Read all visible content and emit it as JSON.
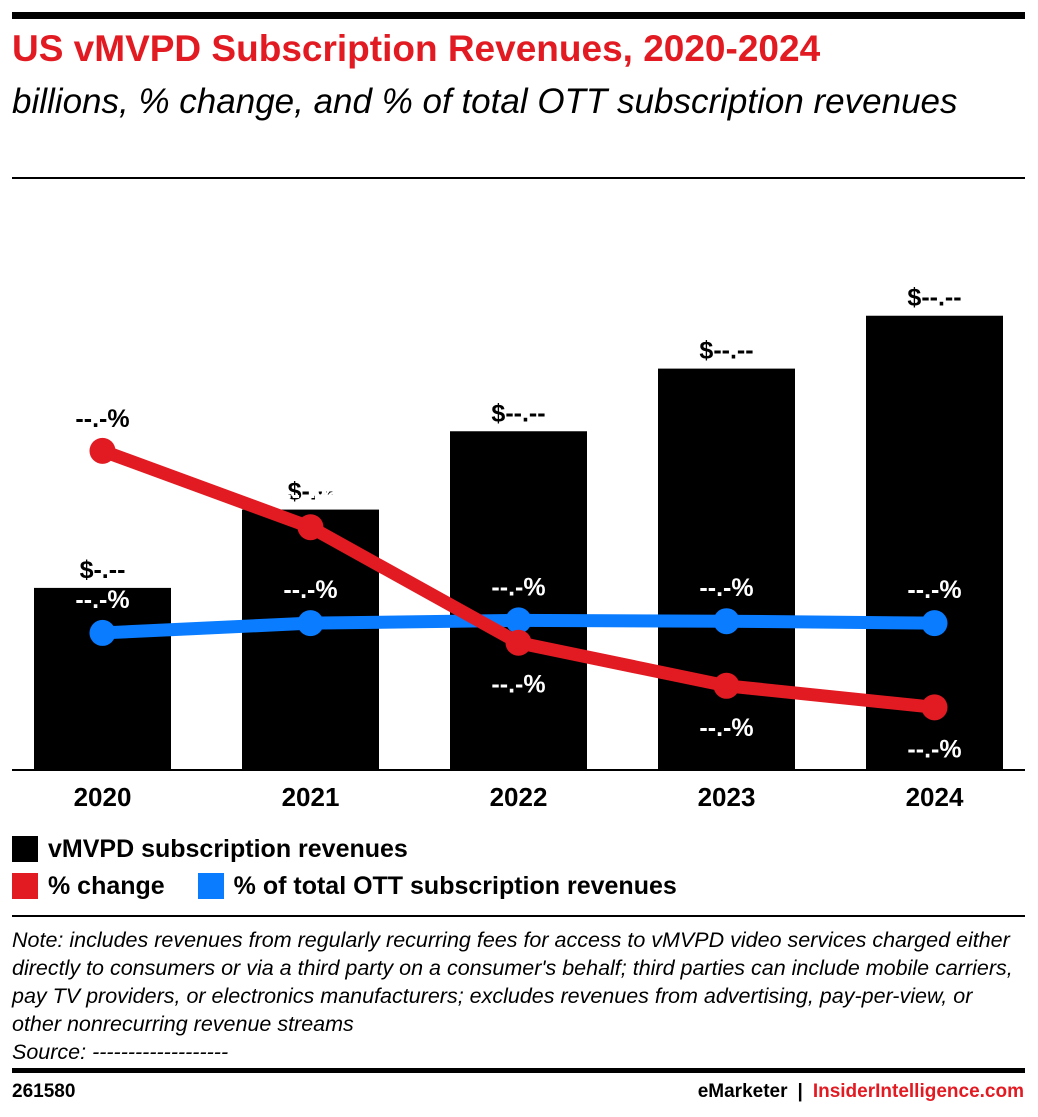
{
  "header": {
    "title": "US vMVPD Subscription Revenues, 2020-2024",
    "subtitle": "billions, % change, and % of total OTT subscription revenues"
  },
  "colors": {
    "bar": "#000000",
    "change": "#e21b23",
    "share": "#0a7cff",
    "accent": "#e21b23"
  },
  "chart_data": {
    "type": "bar",
    "categories": [
      "2020",
      "2021",
      "2022",
      "2023",
      "2024"
    ],
    "series": [
      {
        "name": "vMVPD subscription revenues",
        "type": "bar",
        "values": [
          4.65,
          6.65,
          8.65,
          10.25,
          11.6
        ],
        "labels": [
          "$-.--",
          "$-.--",
          "$--.--",
          "$--.--",
          "$--.--"
        ]
      },
      {
        "name": "% change",
        "type": "line",
        "values": [
          8.15,
          6.2,
          3.25,
          2.15,
          1.6
        ],
        "labels": [
          "--.-%",
          "--.-%",
          "--.-%",
          "--.-%",
          "--.-%"
        ]
      },
      {
        "name": "% of total OTT subscription revenues",
        "type": "line",
        "values": [
          3.5,
          3.75,
          3.82,
          3.8,
          3.75
        ],
        "labels": [
          "--.-%",
          "--.-%",
          "--.-%",
          "--.-%",
          "--.-%"
        ]
      }
    ],
    "ylim": [
      0,
      14.3
    ],
    "grid": false,
    "legend_position": "bottom-left"
  },
  "legend": {
    "items": [
      {
        "label": "vMVPD subscription revenues",
        "color": "#000000"
      },
      {
        "label": "% change",
        "color": "#e21b23"
      },
      {
        "label": "% of total OTT subscription revenues",
        "color": "#0a7cff"
      }
    ]
  },
  "note": {
    "text": "Note: includes revenues from regularly recurring fees for access to vMVPD video services charged either directly to consumers or via a third party on a consumer's behalf; third parties can include mobile carriers, pay TV providers, or electronics manufacturers; excludes revenues from advertising, pay-per-view, or other nonrecurring revenue streams",
    "source": "Source: -------------------"
  },
  "footer": {
    "chart_id": "261580",
    "brand": "eMarketer",
    "separator": "|",
    "brand2": "InsiderIntelligence.com"
  }
}
